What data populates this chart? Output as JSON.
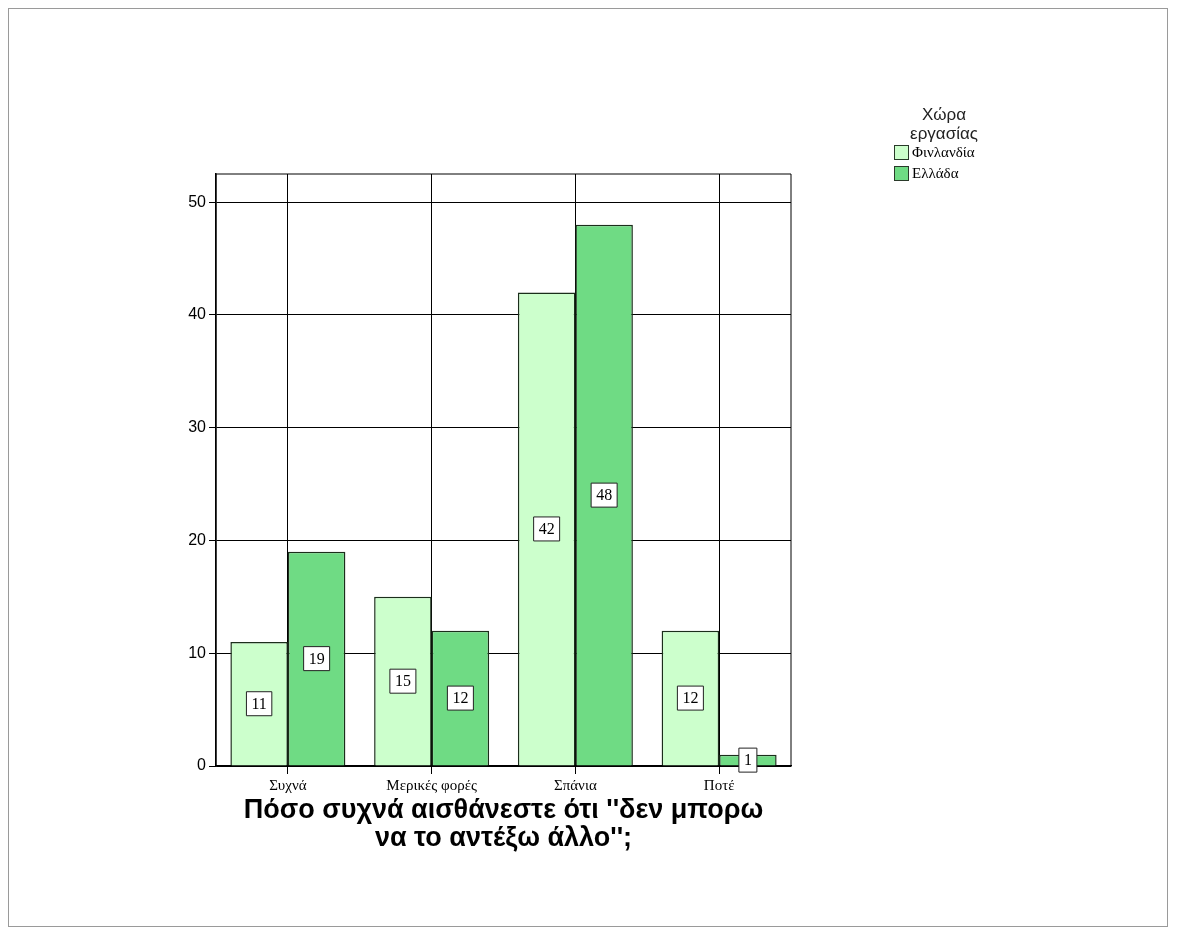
{
  "chart_data": {
    "type": "bar",
    "xlabel": "Πόσο συχνά αισθάνεστε ότι ''δεν μπορω να το αντέξω άλλο'';",
    "legend_title": "Χώρα εργασίας",
    "categories": [
      "Συχνά",
      "Μερικές φορές",
      "Σπάνια",
      "Ποτέ"
    ],
    "series": [
      {
        "name": "Φινλανδία",
        "color": "#ccffcc",
        "values": [
          11,
          15,
          42,
          12
        ]
      },
      {
        "name": "Ελλάδα",
        "color": "#6fdb84",
        "values": [
          19,
          12,
          48,
          1
        ]
      }
    ],
    "ylim": [
      0,
      52.5
    ],
    "yticks": [
      0,
      10,
      20,
      30,
      40,
      50
    ],
    "grid": true,
    "legend": "top right",
    "data_labels": true
  }
}
